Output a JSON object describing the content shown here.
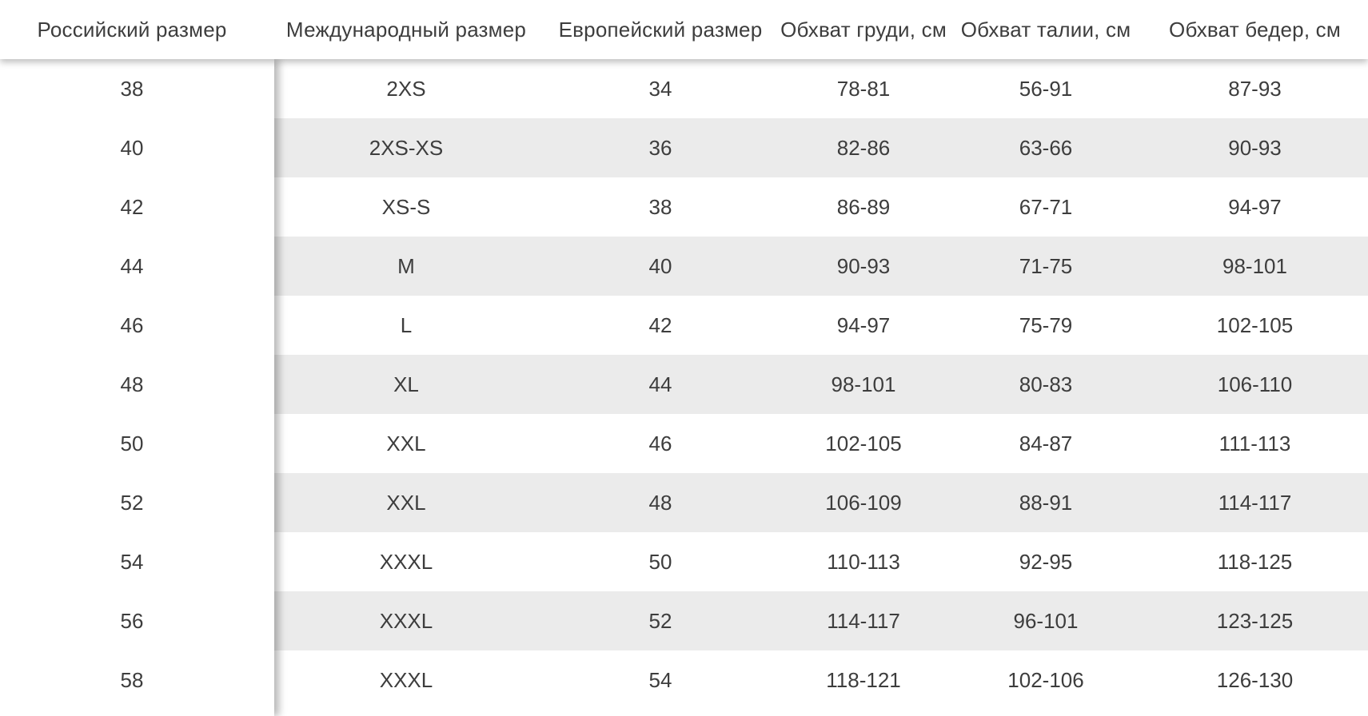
{
  "table": {
    "headers": [
      "Российский размер",
      "Международный размер",
      "Европейский размер",
      "Обхват груди, см",
      "Обхват талии, см",
      "Обхват бедер, см"
    ],
    "rows": [
      [
        "38",
        "2XS",
        "34",
        "78-81",
        "56-91",
        "87-93"
      ],
      [
        "40",
        "2XS-XS",
        "36",
        "82-86",
        "63-66",
        "90-93"
      ],
      [
        "42",
        "XS-S",
        "38",
        "86-89",
        "67-71",
        "94-97"
      ],
      [
        "44",
        "M",
        "40",
        "90-93",
        "71-75",
        "98-101"
      ],
      [
        "46",
        "L",
        "42",
        "94-97",
        "75-79",
        "102-105"
      ],
      [
        "48",
        "XL",
        "44",
        "98-101",
        "80-83",
        "106-110"
      ],
      [
        "50",
        "XXL",
        "46",
        "102-105",
        "84-87",
        "111-113"
      ],
      [
        "52",
        "XXL",
        "48",
        "106-109",
        "88-91",
        "114-117"
      ],
      [
        "54",
        "XXXL",
        "50",
        "110-113",
        "92-95",
        "118-125"
      ],
      [
        "56",
        "XXXL",
        "52",
        "114-117",
        "96-101",
        "123-125"
      ],
      [
        "58",
        "XXXL",
        "54",
        "118-121",
        "102-106",
        "126-130"
      ]
    ]
  },
  "colors": {
    "shaded_row": "#ebebeb",
    "text": "#3d3d3d",
    "background": "#ffffff"
  }
}
